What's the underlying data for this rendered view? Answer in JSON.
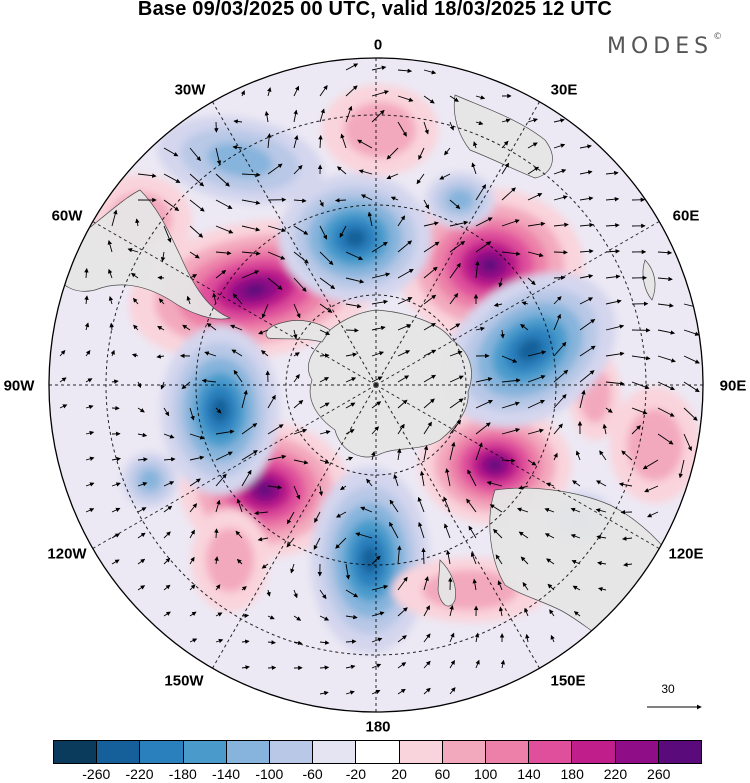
{
  "title": "Base 09/03/2025 00 UTC, valid 18/03/2025 12 UTC",
  "brand": "MODES",
  "brand_mark": "©",
  "longitude_labels": [
    "0",
    "30E",
    "60E",
    "90E",
    "120E",
    "150E",
    "180",
    "150W",
    "120W",
    "90W",
    "60W",
    "30W"
  ],
  "reference_vector": {
    "value": "30"
  },
  "colorbar": {
    "colors": [
      "#0a3a5c",
      "#15609a",
      "#2a80bd",
      "#4a9bcc",
      "#86b4dc",
      "#b8c8e6",
      "#e4e4f2",
      "#ffffff",
      "#fad4dc",
      "#f3a9bd",
      "#ec80a8",
      "#df4f9b",
      "#c01e8a",
      "#8f0d86",
      "#5b0a7b"
    ],
    "ticks": [
      "-260",
      "-220",
      "-180",
      "-140",
      "-100",
      "-60",
      "-20",
      "20",
      "60",
      "100",
      "140",
      "180",
      "220",
      "260"
    ]
  },
  "anomalies": [
    {
      "name": "positive",
      "value": 240,
      "color": "#8f0d86"
    },
    {
      "name": "negative",
      "value": -200,
      "color": "#2a80bd"
    }
  ]
}
